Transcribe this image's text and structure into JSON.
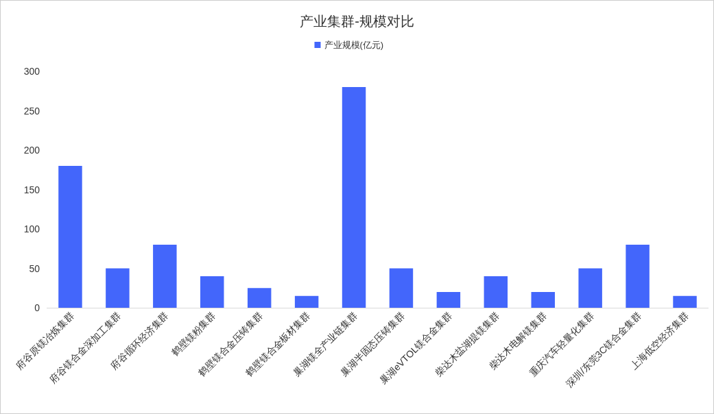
{
  "chart_data": {
    "type": "bar",
    "title": "产业集群-规模对比",
    "categories": [
      "府谷原镁冶炼集群",
      "府谷镁合金深加工集群",
      "府谷循环经济集群",
      "鹤壁镁粉集群",
      "鹤壁镁合金压铸集群",
      "鹤壁镁合金板材集群",
      "巢湖镁全产业链集群",
      "巢湖半固态压铸集群",
      "巢湖eVTOL镁合金集群",
      "柴达木盐湖提镁集群",
      "柴达木电解镁集群",
      "重庆汽车轻量化集群",
      "深圳/东莞3C镁合金集群",
      "上海低空经济集群"
    ],
    "series": [
      {
        "name": "产业规模(亿元)",
        "color": "#4366fb",
        "values": [
          180,
          50,
          80,
          40,
          25,
          15,
          280,
          50,
          20,
          40,
          20,
          50,
          80,
          15
        ]
      }
    ],
    "ylim": [
      0,
      300
    ],
    "yticks": [
      0,
      50,
      100,
      150,
      200,
      250,
      300
    ],
    "legend": "top"
  }
}
